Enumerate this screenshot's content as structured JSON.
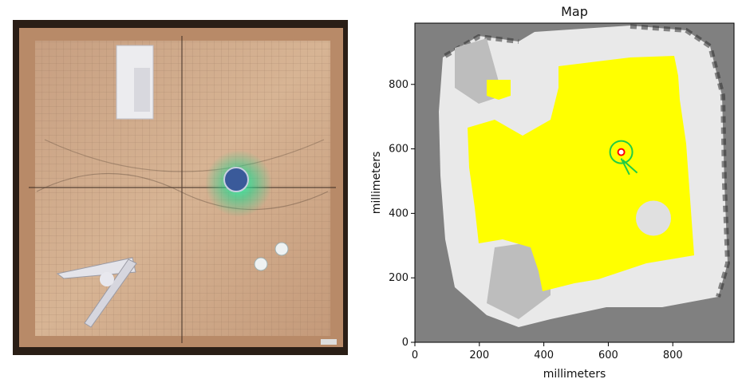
{
  "photo": {
    "alt": "Overhead photo of a wooden arena with robots"
  },
  "chart_data": {
    "type": "heatmap",
    "title": "Map",
    "xlabel": "millimeters",
    "ylabel": "millimeters",
    "xlim": [
      0,
      990
    ],
    "ylim": [
      0,
      990
    ],
    "xticks": [
      0,
      200,
      400,
      600,
      800
    ],
    "yticks": [
      0,
      200,
      400,
      600,
      800
    ],
    "grid": false,
    "colors": {
      "unknown": "#808080",
      "free": "#ffff00",
      "robot_marker": "#ff0000",
      "robot_outline": "#22cc44"
    },
    "robot": {
      "x": 640,
      "y": 590,
      "heading_deg": -70
    }
  }
}
